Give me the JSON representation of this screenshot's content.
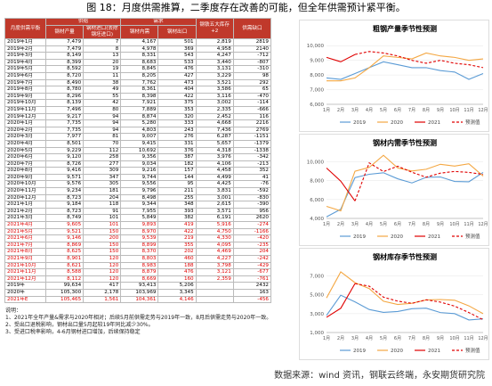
{
  "figure_title": "图 18：月度供需推算，二季度存在改善的可能，但全年供需预计紧平衡。",
  "table": {
    "header": {
      "corner": "月度供需平衡",
      "group_supply": "供给",
      "group_demand": "需求",
      "columns": [
        "钢材产量",
        "钢材进口(去除钢坯进口)",
        "钢材内需",
        "钢材出口",
        "钢铁五大库存+2",
        "供需缺口"
      ]
    },
    "rows": [
      {
        "cells": [
          "2019年1月",
          "7,479",
          "7",
          "4,167",
          "501",
          "2,819",
          "2819"
        ]
      },
      {
        "cells": [
          "2019年2月",
          "7,479",
          "8",
          "4,978",
          "369",
          "4,958",
          "2140"
        ]
      },
      {
        "cells": [
          "2019年3月",
          "8,149",
          "13",
          "8,331",
          "543",
          "4,247",
          "-712"
        ]
      },
      {
        "cells": [
          "2019年4月",
          "8,399",
          "20",
          "8,683",
          "533",
          "3,440",
          "-807"
        ]
      },
      {
        "cells": [
          "2019年5月",
          "8,592",
          "19",
          "8,845",
          "476",
          "3,131",
          "-310"
        ]
      },
      {
        "cells": [
          "2019年6月",
          "8,720",
          "11",
          "8,205",
          "427",
          "3,229",
          "98"
        ]
      },
      {
        "cells": [
          "2019年7月",
          "8,490",
          "38",
          "7,762",
          "473",
          "3,521",
          "292"
        ]
      },
      {
        "cells": [
          "2019年8月",
          "8,780",
          "49",
          "8,361",
          "404",
          "3,586",
          "65"
        ]
      },
      {
        "cells": [
          "2019年9月",
          "8,296",
          "55",
          "8,398",
          "422",
          "3,116",
          "-470"
        ]
      },
      {
        "cells": [
          "2019年10月",
          "8,139",
          "42",
          "7,921",
          "375",
          "3,002",
          "-114"
        ]
      },
      {
        "cells": [
          "2019年11月",
          "7,496",
          "80",
          "7,889",
          "353",
          "2,335",
          "-666"
        ]
      },
      {
        "cells": [
          "2019年12月",
          "9,217",
          "94",
          "8,874",
          "320",
          "2,452",
          "116"
        ]
      },
      {
        "cells": [
          "2020年1月",
          "7,735",
          "94",
          "5,280",
          "333",
          "4,668",
          "2216"
        ]
      },
      {
        "cells": [
          "2020年2月",
          "7,735",
          "94",
          "4,803",
          "243",
          "7,436",
          "2769"
        ]
      },
      {
        "cells": [
          "2020年3月",
          "7,977",
          "81",
          "9,007",
          "276",
          "6,287",
          "-1151"
        ]
      },
      {
        "cells": [
          "2020年4月",
          "8,501",
          "70",
          "9,415",
          "331",
          "5,657",
          "-1379"
        ]
      },
      {
        "cells": [
          "2020年5月",
          "9,229",
          "112",
          "10,692",
          "376",
          "4,318",
          "-1338"
        ]
      },
      {
        "cells": [
          "2020年6月",
          "9,120",
          "258",
          "9,356",
          "387",
          "3,976",
          "-342"
        ]
      },
      {
        "cells": [
          "2020年7月",
          "8,726",
          "277",
          "9,034",
          "182",
          "4,106",
          "-213"
        ]
      },
      {
        "cells": [
          "2020年8月",
          "9,416",
          "309",
          "9,216",
          "157",
          "4,458",
          "352"
        ]
      },
      {
        "cells": [
          "2020年9月",
          "9,571",
          "347",
          "9,744",
          "144",
          "4,499",
          "41"
        ]
      },
      {
        "cells": [
          "2020年10月",
          "9,576",
          "305",
          "9,556",
          "95",
          "4,425",
          "-76"
        ]
      },
      {
        "cells": [
          "2020年11月",
          "9,234",
          "181",
          "9,796",
          "211",
          "3,831",
          "-592"
        ]
      },
      {
        "cells": [
          "2020年12月",
          "8,723",
          "204",
          "8,498",
          "255",
          "3,001",
          "-830"
        ]
      },
      {
        "cells": [
          "2021年1月",
          "9,184",
          "118",
          "9,344",
          "348",
          "2,615",
          "-390"
        ]
      },
      {
        "cells": [
          "2021年2月",
          "8,723",
          "91",
          "7,955",
          "393",
          "3,571",
          "956"
        ]
      },
      {
        "cells": [
          "2021年3月",
          "8,749",
          "101",
          "5,849",
          "382",
          "6,191",
          "2620"
        ]
      },
      {
        "cells": [
          "2021年4月",
          "9,605",
          "101",
          "9,893",
          "419",
          "5,916",
          "-274"
        ],
        "color": "#e00000"
      },
      {
        "cells": [
          "2021年5月",
          "9,521",
          "150",
          "8,970",
          "422",
          "4,750",
          "-1166"
        ],
        "color": "#e00000"
      },
      {
        "cells": [
          "2021年6月",
          "9,146",
          "200",
          "9,539",
          "219",
          "4,330",
          "-420"
        ],
        "color": "#e00000"
      },
      {
        "cells": [
          "2021年7月",
          "8,869",
          "150",
          "8,899",
          "355",
          "4,095",
          "-235"
        ],
        "color": "#e00000"
      },
      {
        "cells": [
          "2021年8月",
          "8,625",
          "150",
          "8,370",
          "202",
          "4,469",
          "204"
        ],
        "color": "#e00000"
      },
      {
        "cells": [
          "2021年9月",
          "8,901",
          "120",
          "8,803",
          "460",
          "4,227",
          "-242"
        ],
        "color": "#e00000"
      },
      {
        "cells": [
          "2021年10月",
          "8,621",
          "120",
          "8,983",
          "188",
          "3,798",
          "-429"
        ],
        "color": "#e00000"
      },
      {
        "cells": [
          "2021年11月",
          "8,588",
          "120",
          "8,879",
          "476",
          "3,121",
          "-677"
        ],
        "color": "#e00000"
      },
      {
        "cells": [
          "2021年12月",
          "8,112",
          "120",
          "8,669",
          "160",
          "2,359",
          "-761"
        ],
        "color": "#e00000"
      },
      {
        "cells": [
          "2019年",
          "99,634",
          "417",
          "93,413",
          "5,206",
          null,
          "2432"
        ]
      },
      {
        "cells": [
          "2020年",
          "105,300",
          "2,178",
          "103,969",
          "3,345",
          null,
          "163"
        ]
      },
      {
        "cells": [
          "2021年E",
          "105,465",
          "1,561",
          "104,361",
          "4,146",
          null,
          "-456"
        ],
        "color": "#e00000"
      }
    ]
  },
  "notes": {
    "title": "说明：",
    "items": [
      "1、2021年全年产量&需求与2020年相对；后续5月前供需走势与2019年一致，8月后供需走势与2020年一致。",
      "2、受出口退税影响，钢材出口量5月起较19年同比减少30%。",
      "3、受进口税率影响，4-6月钢材进口增加，后续保持稳定"
    ]
  },
  "source": "数据来源：wind 资讯，钢联云终端，永安期货研究院",
  "chart_data": [
    {
      "type": "line",
      "title": "粗钢产量季节性预测",
      "categories": [
        "1月",
        "2月",
        "3月",
        "4月",
        "5月",
        "6月",
        "7月",
        "8月",
        "9月",
        "10月",
        "11月",
        "12月"
      ],
      "ylim": [
        6000,
        10500
      ],
      "yticks": [
        {
          "value": 6000,
          "label": "6,000"
        },
        {
          "value": 7000,
          "label": "7,000"
        },
        {
          "value": 8000,
          "label": "8,000"
        },
        {
          "value": 9000,
          "label": "9,000"
        },
        {
          "value": 10000,
          "label": "10,000"
        }
      ],
      "series": [
        {
          "name": "2019",
          "color": "#5b9bd5",
          "values": [
            7800,
            7700,
            8100,
            8500,
            8900,
            8700,
            8500,
            8500,
            8300,
            8200,
            7700,
            8100
          ]
        },
        {
          "name": "2020",
          "color": "#f4a742",
          "values": [
            7600,
            7600,
            7800,
            8500,
            9300,
            9200,
            9100,
            9500,
            9300,
            9200,
            9000,
            9100
          ]
        },
        {
          "name": "2021",
          "color": "#e00000",
          "values": [
            9200,
            8900,
            9400,
            null,
            null,
            null,
            null,
            null,
            null,
            null,
            null,
            null
          ]
        },
        {
          "name": "预测值",
          "color": "#e00000",
          "dashed": true,
          "values": [
            null,
            null,
            9400,
            9600,
            9500,
            9300,
            9000,
            8800,
            9000,
            8800,
            8700,
            8500
          ]
        }
      ]
    },
    {
      "type": "line",
      "title": "钢材内需季节性预测",
      "categories": [
        "1月",
        "2月",
        "3月",
        "4月",
        "5月",
        "6月",
        "7月",
        "8月",
        "9月",
        "10月",
        "11月",
        "12月"
      ],
      "ylim": [
        4000,
        11000
      ],
      "yticks": [
        {
          "value": 4000,
          "label": "4,000"
        },
        {
          "value": 6000,
          "label": "6,000"
        },
        {
          "value": 8000,
          "label": "8,000"
        },
        {
          "value": 10000,
          "label": "10,000"
        }
      ],
      "series": [
        {
          "name": "2019",
          "color": "#5b9bd5",
          "values": [
            4167,
            4978,
            8331,
            8683,
            8845,
            8205,
            7762,
            8361,
            8398,
            7921,
            7889,
            8874
          ]
        },
        {
          "name": "2020",
          "color": "#f4a742",
          "values": [
            5280,
            4803,
            9007,
            9415,
            10692,
            9356,
            9034,
            9216,
            9744,
            9556,
            9796,
            8498
          ]
        },
        {
          "name": "2021",
          "color": "#e00000",
          "values": [
            9344,
            7955,
            5849,
            null,
            null,
            null,
            null,
            null,
            null,
            null,
            null,
            null
          ]
        },
        {
          "name": "预测值",
          "color": "#e00000",
          "dashed": true,
          "values": [
            null,
            null,
            5849,
            9893,
            8970,
            9539,
            8899,
            8370,
            8803,
            8983,
            8879,
            8669
          ]
        }
      ]
    },
    {
      "type": "line",
      "title": "钢材库存季节性预测",
      "categories": [
        "1月",
        "2月",
        "3月",
        "4月",
        "5月",
        "6月",
        "7月",
        "8月",
        "9月",
        "10月",
        "11月",
        "12月"
      ],
      "ylim": [
        1000,
        8000
      ],
      "yticks": [
        {
          "value": 1000,
          "label": "1,000"
        },
        {
          "value": 3000,
          "label": "3,000"
        },
        {
          "value": 5000,
          "label": "5,000"
        },
        {
          "value": 7000,
          "label": "7,000"
        }
      ],
      "series": [
        {
          "name": "2019",
          "color": "#5b9bd5",
          "values": [
            2819,
            4958,
            4247,
            3440,
            3131,
            3229,
            3521,
            3586,
            3116,
            3002,
            2335,
            2452
          ]
        },
        {
          "name": "2020",
          "color": "#f4a742",
          "values": [
            4668,
            7436,
            6287,
            5657,
            4318,
            3976,
            4106,
            4458,
            4499,
            4425,
            3831,
            3001
          ]
        },
        {
          "name": "2021",
          "color": "#e00000",
          "values": [
            2615,
            3571,
            6191,
            null,
            null,
            null,
            null,
            null,
            null,
            null,
            null,
            null
          ]
        },
        {
          "name": "预测值",
          "color": "#e00000",
          "dashed": true,
          "values": [
            null,
            null,
            6191,
            5916,
            4750,
            4330,
            4095,
            4469,
            4227,
            3798,
            3121,
            2359
          ]
        }
      ]
    }
  ]
}
